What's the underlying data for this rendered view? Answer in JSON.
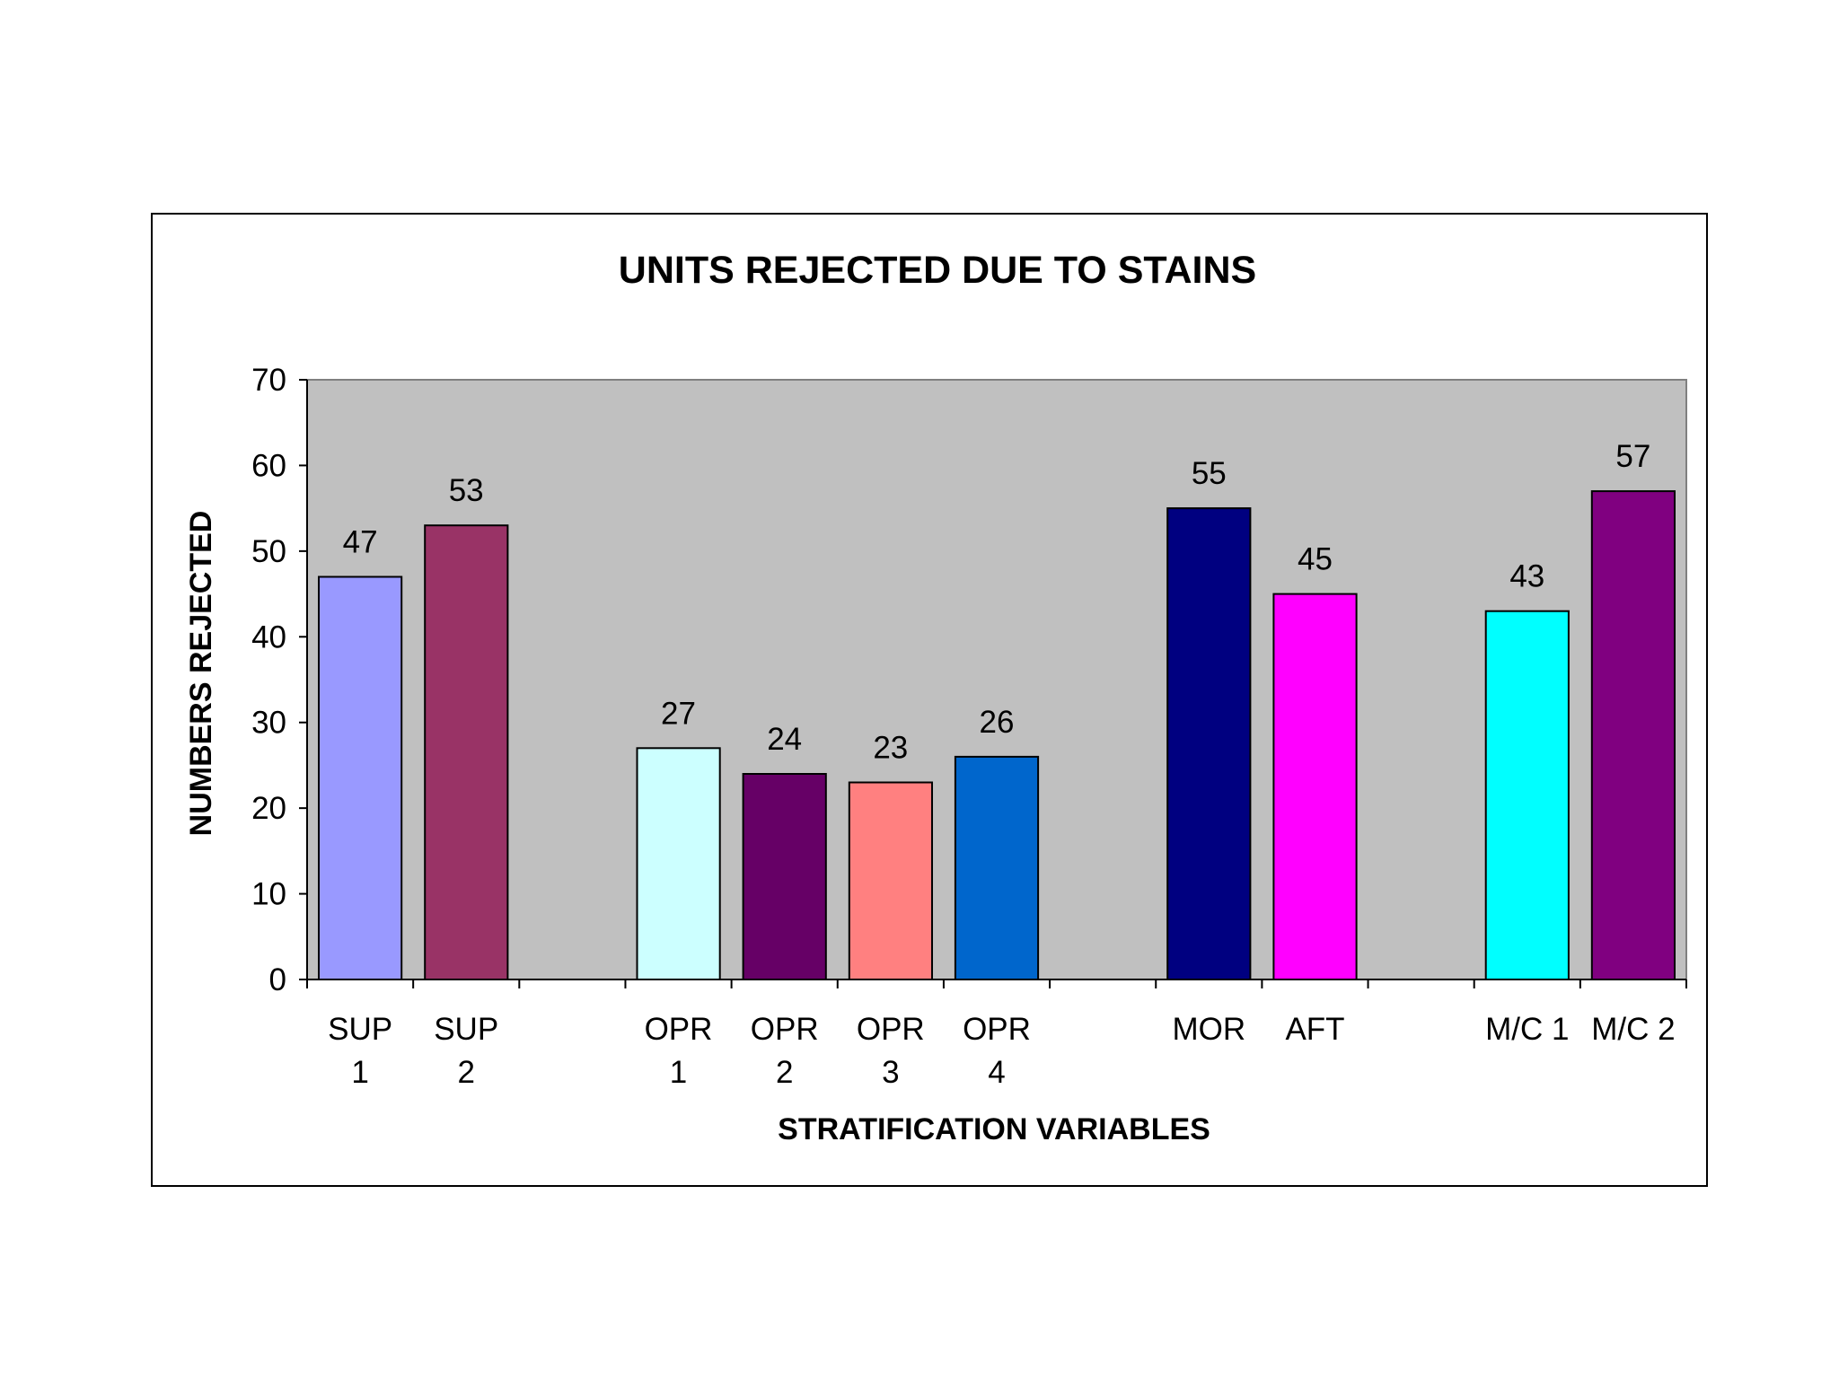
{
  "chart_data": {
    "type": "bar",
    "title": "UNITS REJECTED DUE TO STAINS",
    "xlabel": "STRATIFICATION VARIABLES",
    "ylabel": "NUMBERS REJECTED",
    "ylim": [
      0,
      70
    ],
    "yticks": [
      0,
      10,
      20,
      30,
      40,
      50,
      60,
      70
    ],
    "grid": false,
    "plot_background": "#c0c0c0",
    "categories": [
      [
        "SUP",
        "1"
      ],
      [
        "SUP",
        "2"
      ],
      [],
      [
        "OPR",
        "1"
      ],
      [
        "OPR",
        "2"
      ],
      [
        "OPR",
        "3"
      ],
      [
        "OPR",
        "4"
      ],
      [],
      [
        "MOR"
      ],
      [
        "AFT"
      ],
      [],
      [
        "M/C 1"
      ],
      [
        "M/C 2"
      ]
    ],
    "values": [
      47,
      53,
      null,
      27,
      24,
      23,
      26,
      null,
      55,
      45,
      null,
      43,
      57
    ],
    "colors": [
      "#9999ff",
      "#993366",
      null,
      "#ccffff",
      "#660066",
      "#ff8080",
      "#0066cc",
      null,
      "#000080",
      "#ff00ff",
      null,
      "#00ffff",
      "#800080"
    ]
  }
}
